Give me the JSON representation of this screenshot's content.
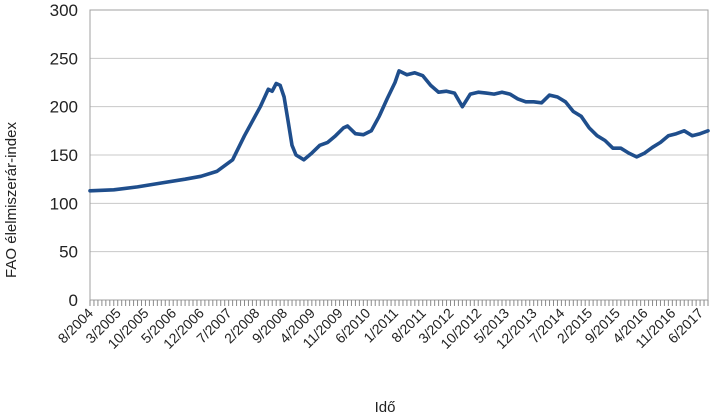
{
  "chart_data": {
    "type": "line",
    "title": "",
    "xlabel": "Idő",
    "ylabel": "FAO élelmiszerár-index",
    "ylim": [
      0,
      300
    ],
    "yticks": [
      0,
      50,
      100,
      150,
      200,
      250,
      300
    ],
    "xlim": [
      "8/2004",
      "8/2017"
    ],
    "x_tick_labels": [
      "8/2004",
      "3/2005",
      "10/2005",
      "5/2006",
      "12/2006",
      "7/2007",
      "2/2008",
      "9/2008",
      "4/2009",
      "11/2009",
      "6/2010",
      "1/2011",
      "8/2011",
      "3/2012",
      "10/2012",
      "5/2013",
      "12/2013",
      "7/2014",
      "2/2015",
      "9/2015",
      "4/2016",
      "11/2016",
      "6/2017"
    ],
    "grid": true,
    "legend": "none",
    "series": [
      {
        "color": "#1f4e8c",
        "points": [
          [
            "8/2004",
            113
          ],
          [
            "2/2005",
            114
          ],
          [
            "8/2005",
            117
          ],
          [
            "2/2006",
            121
          ],
          [
            "8/2006",
            125
          ],
          [
            "12/2006",
            128
          ],
          [
            "4/2007",
            133
          ],
          [
            "8/2007",
            145
          ],
          [
            "11/2007",
            170
          ],
          [
            "1/2008",
            185
          ],
          [
            "3/2008",
            200
          ],
          [
            "5/2008",
            218
          ],
          [
            "6/2008",
            216
          ],
          [
            "7/2008",
            224
          ],
          [
            "8/2008",
            222
          ],
          [
            "9/2008",
            210
          ],
          [
            "10/2008",
            185
          ],
          [
            "11/2008",
            160
          ],
          [
            "12/2008",
            150
          ],
          [
            "2/2009",
            145
          ],
          [
            "4/2009",
            152
          ],
          [
            "6/2009",
            160
          ],
          [
            "8/2009",
            163
          ],
          [
            "10/2009",
            170
          ],
          [
            "12/2009",
            178
          ],
          [
            "1/2010",
            180
          ],
          [
            "3/2010",
            172
          ],
          [
            "5/2010",
            171
          ],
          [
            "7/2010",
            175
          ],
          [
            "9/2010",
            190
          ],
          [
            "11/2010",
            208
          ],
          [
            "1/2011",
            225
          ],
          [
            "2/2011",
            237
          ],
          [
            "4/2011",
            233
          ],
          [
            "6/2011",
            235
          ],
          [
            "8/2011",
            232
          ],
          [
            "10/2011",
            222
          ],
          [
            "12/2011",
            215
          ],
          [
            "2/2012",
            216
          ],
          [
            "4/2012",
            214
          ],
          [
            "6/2012",
            200
          ],
          [
            "8/2012",
            213
          ],
          [
            "10/2012",
            215
          ],
          [
            "12/2012",
            214
          ],
          [
            "2/2013",
            213
          ],
          [
            "4/2013",
            215
          ],
          [
            "6/2013",
            213
          ],
          [
            "8/2013",
            208
          ],
          [
            "10/2013",
            205
          ],
          [
            "12/2013",
            205
          ],
          [
            "2/2014",
            204
          ],
          [
            "4/2014",
            212
          ],
          [
            "6/2014",
            210
          ],
          [
            "8/2014",
            205
          ],
          [
            "10/2014",
            195
          ],
          [
            "12/2014",
            190
          ],
          [
            "2/2015",
            178
          ],
          [
            "4/2015",
            170
          ],
          [
            "6/2015",
            165
          ],
          [
            "8/2015",
            157
          ],
          [
            "10/2015",
            157
          ],
          [
            "12/2015",
            152
          ],
          [
            "2/2016",
            148
          ],
          [
            "4/2016",
            152
          ],
          [
            "6/2016",
            158
          ],
          [
            "8/2016",
            163
          ],
          [
            "10/2016",
            170
          ],
          [
            "12/2016",
            172
          ],
          [
            "2/2017",
            175
          ],
          [
            "4/2017",
            170
          ],
          [
            "6/2017",
            172
          ],
          [
            "8/2017",
            175
          ]
        ]
      }
    ]
  }
}
